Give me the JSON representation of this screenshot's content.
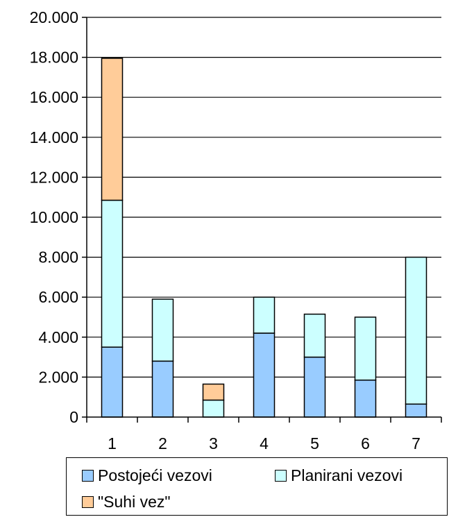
{
  "chart_data": {
    "type": "bar",
    "stacked": true,
    "categories": [
      "1",
      "2",
      "3",
      "4",
      "5",
      "6",
      "7"
    ],
    "series": [
      {
        "name": "Postojeći vezovi",
        "color": "#99ccff",
        "values": [
          3500,
          2800,
          0,
          4200,
          3000,
          1850,
          650
        ]
      },
      {
        "name": "Planirani vezovi",
        "color": "#ccffff",
        "values": [
          7350,
          3100,
          850,
          1800,
          2150,
          3150,
          7350
        ]
      },
      {
        "name": "\"Suhi vez\"",
        "color": "#ffcc99",
        "values": [
          7100,
          0,
          800,
          0,
          0,
          0,
          0
        ]
      }
    ],
    "ylim": [
      0,
      20000
    ],
    "yticks": [
      "0",
      "2.000",
      "4.000",
      "6.000",
      "8.000",
      "10.000",
      "12.000",
      "14.000",
      "16.000",
      "18.000",
      "20.000"
    ],
    "grid": true,
    "legend_position": "bottom"
  }
}
